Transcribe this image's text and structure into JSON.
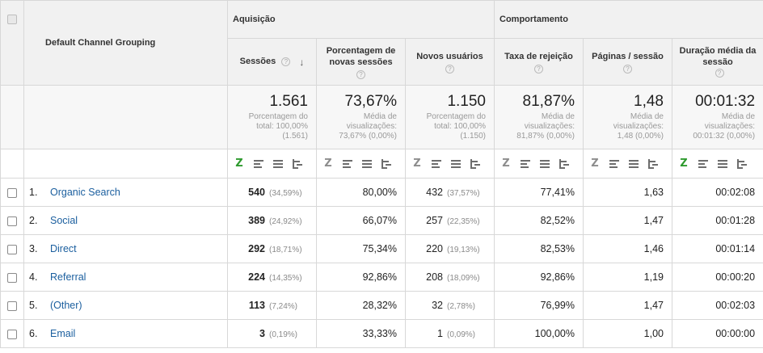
{
  "dimension_header": "Default Channel Grouping",
  "groups": {
    "acquisition": "Aquisição",
    "behavior": "Comportamento"
  },
  "columns": {
    "sessions": "Sessões",
    "new_sessions_pct": "Porcentagem de novas sessões",
    "new_users": "Novos usuários",
    "bounce_rate": "Taxa de rejeição",
    "pages_per_session": "Páginas / sessão",
    "avg_duration": "Duração média da sessão"
  },
  "help_glyph": "?",
  "sort_glyph": "↓",
  "totals": {
    "sessions": {
      "value": "1.561",
      "l1": "Porcentagem do",
      "l2": "total: 100,00%",
      "l3": "(1.561)"
    },
    "new_sessions_pct": {
      "value": "73,67%",
      "l1": "Média de",
      "l2": "visualizações:",
      "l3": "73,67% (0,00%)"
    },
    "new_users": {
      "value": "1.150",
      "l1": "Porcentagem do",
      "l2": "total: 100,00%",
      "l3": "(1.150)"
    },
    "bounce_rate": {
      "value": "81,87%",
      "l1": "Média de",
      "l2": "visualizações:",
      "l3": "81,87% (0,00%)"
    },
    "pages_per_session": {
      "value": "1,48",
      "l1": "Média de",
      "l2": "visualizações:",
      "l3": "1,48 (0,00%)"
    },
    "avg_duration": {
      "value": "00:01:32",
      "l1": "Média de",
      "l2": "visualizações:",
      "l3": "00:01:32 (0,00%)"
    }
  },
  "viz_icons": [
    "z-table-icon",
    "bar-chart-icon",
    "list-icon",
    "compare-icon"
  ],
  "viz_z_label": "Z",
  "rows": [
    {
      "idx": "1.",
      "name": "Organic Search",
      "sessions": "540",
      "sessions_pct": "(34,59%)",
      "new_pct": "80,00%",
      "new_users": "432",
      "new_users_pct": "(37,57%)",
      "bounce": "77,41%",
      "pages": "1,63",
      "duration": "00:02:08"
    },
    {
      "idx": "2.",
      "name": "Social",
      "sessions": "389",
      "sessions_pct": "(24,92%)",
      "new_pct": "66,07%",
      "new_users": "257",
      "new_users_pct": "(22,35%)",
      "bounce": "82,52%",
      "pages": "1,47",
      "duration": "00:01:28"
    },
    {
      "idx": "3.",
      "name": "Direct",
      "sessions": "292",
      "sessions_pct": "(18,71%)",
      "new_pct": "75,34%",
      "new_users": "220",
      "new_users_pct": "(19,13%)",
      "bounce": "82,53%",
      "pages": "1,46",
      "duration": "00:01:14"
    },
    {
      "idx": "4.",
      "name": "Referral",
      "sessions": "224",
      "sessions_pct": "(14,35%)",
      "new_pct": "92,86%",
      "new_users": "208",
      "new_users_pct": "(18,09%)",
      "bounce": "92,86%",
      "pages": "1,19",
      "duration": "00:00:20"
    },
    {
      "idx": "5.",
      "name": "(Other)",
      "sessions": "113",
      "sessions_pct": "(7,24%)",
      "new_pct": "28,32%",
      "new_users": "32",
      "new_users_pct": "(2,78%)",
      "bounce": "76,99%",
      "pages": "1,47",
      "duration": "00:02:03"
    },
    {
      "idx": "6.",
      "name": "Email",
      "sessions": "3",
      "sessions_pct": "(0,19%)",
      "new_pct": "33,33%",
      "new_users": "1",
      "new_users_pct": "(0,09%)",
      "bounce": "100,00%",
      "pages": "1,00",
      "duration": "00:00:00"
    }
  ],
  "colors": {
    "link": "#1a5e9e",
    "header_bg": "#f1f1f1",
    "active_viz": "#2e9a2e"
  }
}
